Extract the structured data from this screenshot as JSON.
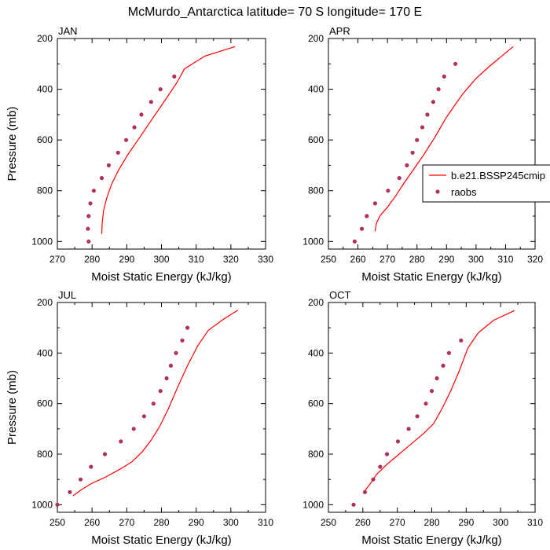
{
  "figure": {
    "title": "McMurdo_Antarctica  latitude= 70 S longitude= 170 E"
  },
  "legend": {
    "items": [
      {
        "label": "b.e21.BSSP245cmip",
        "kind": "line",
        "color": "#ff0000"
      },
      {
        "label": "raobs",
        "kind": "marker",
        "color": "#b03060"
      }
    ]
  },
  "chart_data": [
    {
      "type": "line",
      "panel": "JAN",
      "xlabel": "Moist Static Energy (kJ/kg)",
      "ylabel": "Pressure (mb)",
      "xlim": [
        270,
        330
      ],
      "xticks": [
        270,
        280,
        290,
        300,
        310,
        320,
        330
      ],
      "ylim": [
        200,
        1030
      ],
      "yticks": [
        200,
        400,
        600,
        800,
        1000
      ],
      "y_reversed": true,
      "series": [
        {
          "name": "b.e21.BSSP245cmip",
          "style": "line",
          "x": [
            282.8,
            282.9,
            283.3,
            284.2,
            285.6,
            287.6,
            290.2,
            293.2,
            296.2,
            299.2,
            302.2,
            304.4,
            306.6,
            312.4,
            321.2
          ],
          "y": [
            970,
            930,
            880,
            830,
            775,
            720,
            660,
            600,
            540,
            480,
            420,
            375,
            320,
            270,
            232
          ]
        },
        {
          "name": "raobs",
          "style": "marker",
          "x": [
            279.0,
            278.8,
            279.0,
            279.5,
            280.5,
            282.8,
            284.8,
            287.5,
            289.8,
            292.2,
            294.2,
            297.0,
            299.7,
            303.7
          ],
          "y": [
            1000,
            950,
            900,
            850,
            800,
            750,
            700,
            650,
            600,
            550,
            500,
            450,
            400,
            350
          ]
        }
      ]
    },
    {
      "type": "line",
      "panel": "APR",
      "xlabel": "Moist Static Energy (kJ/kg)",
      "ylabel": "",
      "xlim": [
        250,
        320
      ],
      "xticks": [
        250,
        260,
        270,
        280,
        290,
        300,
        310,
        320
      ],
      "ylim": [
        200,
        1030
      ],
      "yticks": [
        200,
        400,
        600,
        800,
        1000
      ],
      "y_reversed": true,
      "series": [
        {
          "name": "b.e21.BSSP245cmip",
          "style": "line",
          "x": [
            265.8,
            266.2,
            267.4,
            270.0,
            272.8,
            275.6,
            278.6,
            282.2,
            286.0,
            290.0,
            295.4,
            299.8,
            304.5,
            312.6
          ],
          "y": [
            960,
            930,
            900,
            865,
            820,
            770,
            720,
            660,
            590,
            510,
            420,
            360,
            310,
            232
          ]
        },
        {
          "name": "raobs",
          "style": "marker",
          "x": [
            258.9,
            261.3,
            263.0,
            265.8,
            270.2,
            274.0,
            276.6,
            278.5,
            280.0,
            281.8,
            283.5,
            285.5,
            287.3,
            289.2,
            293.0
          ],
          "y": [
            1000,
            950,
            900,
            850,
            800,
            750,
            700,
            650,
            600,
            550,
            500,
            450,
            400,
            350,
            300
          ]
        }
      ]
    },
    {
      "type": "line",
      "panel": "JUL",
      "xlabel": "Moist Static Energy (kJ/kg)",
      "ylabel": "Pressure (mb)",
      "xlim": [
        250,
        310
      ],
      "xticks": [
        250,
        260,
        270,
        280,
        290,
        300,
        310
      ],
      "ylim": [
        200,
        1030
      ],
      "yticks": [
        200,
        400,
        600,
        800,
        1000
      ],
      "y_reversed": true,
      "series": [
        {
          "name": "b.e21.BSSP245cmip",
          "style": "line",
          "x": [
            254.5,
            257.0,
            260.0,
            264.0,
            268.0,
            271.5,
            274.5,
            277.0,
            279.5,
            282.0,
            284.5,
            287.5,
            290.5,
            293.5,
            298.0,
            302.0
          ],
          "y": [
            965,
            940,
            915,
            890,
            860,
            830,
            790,
            745,
            690,
            620,
            540,
            450,
            370,
            310,
            265,
            230
          ]
        },
        {
          "name": "raobs",
          "style": "marker",
          "x": [
            250.0,
            253.6,
            256.7,
            259.7,
            263.7,
            268.3,
            272.0,
            275.0,
            277.7,
            279.7,
            281.5,
            282.7,
            284.2,
            286.0,
            287.5
          ],
          "y": [
            1000,
            950,
            900,
            850,
            800,
            750,
            700,
            650,
            600,
            550,
            500,
            450,
            400,
            350,
            300
          ]
        }
      ]
    },
    {
      "type": "line",
      "panel": "OCT",
      "xlabel": "Moist Static Energy (kJ/kg)",
      "ylabel": "",
      "xlim": [
        250,
        310
      ],
      "xticks": [
        250,
        260,
        270,
        280,
        290,
        300,
        310
      ],
      "ylim": [
        200,
        1030
      ],
      "yticks": [
        200,
        400,
        600,
        800,
        1000
      ],
      "y_reversed": true,
      "series": [
        {
          "name": "b.e21.BSSP245cmip",
          "style": "line",
          "x": [
            260.5,
            262.0,
            264.0,
            267.0,
            270.5,
            274.0,
            277.5,
            280.5,
            283.0,
            285.5,
            288.0,
            290.5,
            293.5,
            298.0,
            304.0
          ],
          "y": [
            945,
            920,
            880,
            840,
            800,
            760,
            720,
            680,
            620,
            550,
            470,
            380,
            320,
            270,
            232
          ]
        },
        {
          "name": "raobs",
          "style": "marker",
          "x": [
            257.3,
            260.6,
            263.0,
            265.0,
            267.0,
            270.2,
            273.3,
            275.8,
            278.3,
            280.0,
            281.5,
            283.3,
            285.0,
            288.5
          ],
          "y": [
            1000,
            950,
            900,
            850,
            800,
            750,
            700,
            650,
            600,
            550,
            500,
            450,
            400,
            350
          ]
        }
      ]
    }
  ]
}
